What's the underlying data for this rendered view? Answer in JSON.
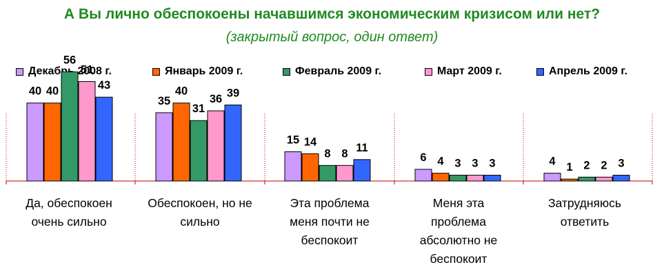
{
  "chart_data": {
    "type": "bar",
    "title": "А Вы лично обеспокоены начавшимся экономическим кризисом или нет?",
    "subtitle": "(закрытый вопрос, один ответ)",
    "categories": [
      "Да, обеспокоен очень сильно",
      "Обеспокоен, но не сильно",
      "Эта проблема меня почти не беспокоит",
      "Меня эта проблема абсолютно не беспокоит",
      "Затрудняюсь ответить"
    ],
    "series": [
      {
        "name": "Декабрь 2008 г.",
        "color": "#cc99ff",
        "values": [
          40,
          35,
          15,
          6,
          4
        ]
      },
      {
        "name": "Январь 2009 г.",
        "color": "#ff6600",
        "values": [
          40,
          40,
          14,
          4,
          1
        ]
      },
      {
        "name": "Февраль 2009 г.",
        "color": "#339966",
        "values": [
          56,
          31,
          8,
          3,
          2
        ]
      },
      {
        "name": "Март 2009 г.",
        "color": "#ff99cc",
        "values": [
          51,
          36,
          8,
          3,
          2
        ]
      },
      {
        "name": "Апрель 2009 г.",
        "color": "#3366ff",
        "values": [
          43,
          39,
          11,
          3,
          3
        ]
      }
    ],
    "ylim": [
      0,
      60
    ],
    "legend_position": "top",
    "grid": false
  }
}
